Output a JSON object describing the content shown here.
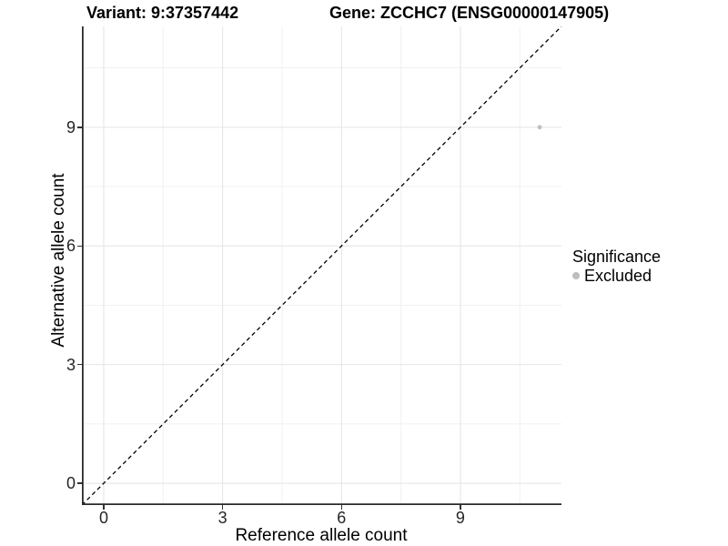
{
  "chart_data": {
    "type": "scatter",
    "title_parts": [
      "Variant: 9:37357442",
      "Gene: ZCCHC7 (ENSG00000147905)"
    ],
    "xlabel": "Reference allele count",
    "ylabel": "Alternative allele count",
    "xlim": [
      -0.55,
      11.55
    ],
    "ylim": [
      -0.55,
      11.55
    ],
    "x_major_ticks": [
      0,
      3,
      6,
      9
    ],
    "y_major_ticks": [
      0,
      3,
      6,
      9
    ],
    "x_minor_gridlines": [
      1.5,
      4.5,
      7.5,
      10.5
    ],
    "y_minor_gridlines": [
      1.5,
      4.5,
      7.5,
      10.5
    ],
    "grid": "major+minor",
    "reference_line": {
      "kind": "identity y=x",
      "style": "dashed",
      "color": "#000000"
    },
    "series": [
      {
        "name": "Excluded",
        "color": "#bebebe",
        "points": [
          {
            "x": 11,
            "y": 9
          }
        ]
      }
    ],
    "legend": {
      "position": "right",
      "title": "Significance",
      "items": [
        {
          "label": "Excluded",
          "color": "#bebebe"
        }
      ]
    }
  },
  "colors": {
    "background": "#ffffff",
    "grid_major": "#e4e4e4",
    "grid_minor": "#f1f1f1",
    "axis_line": "#2a2a2a",
    "tick_mark": "#333333",
    "tick_label": "#262626",
    "point": "#bebebe"
  }
}
